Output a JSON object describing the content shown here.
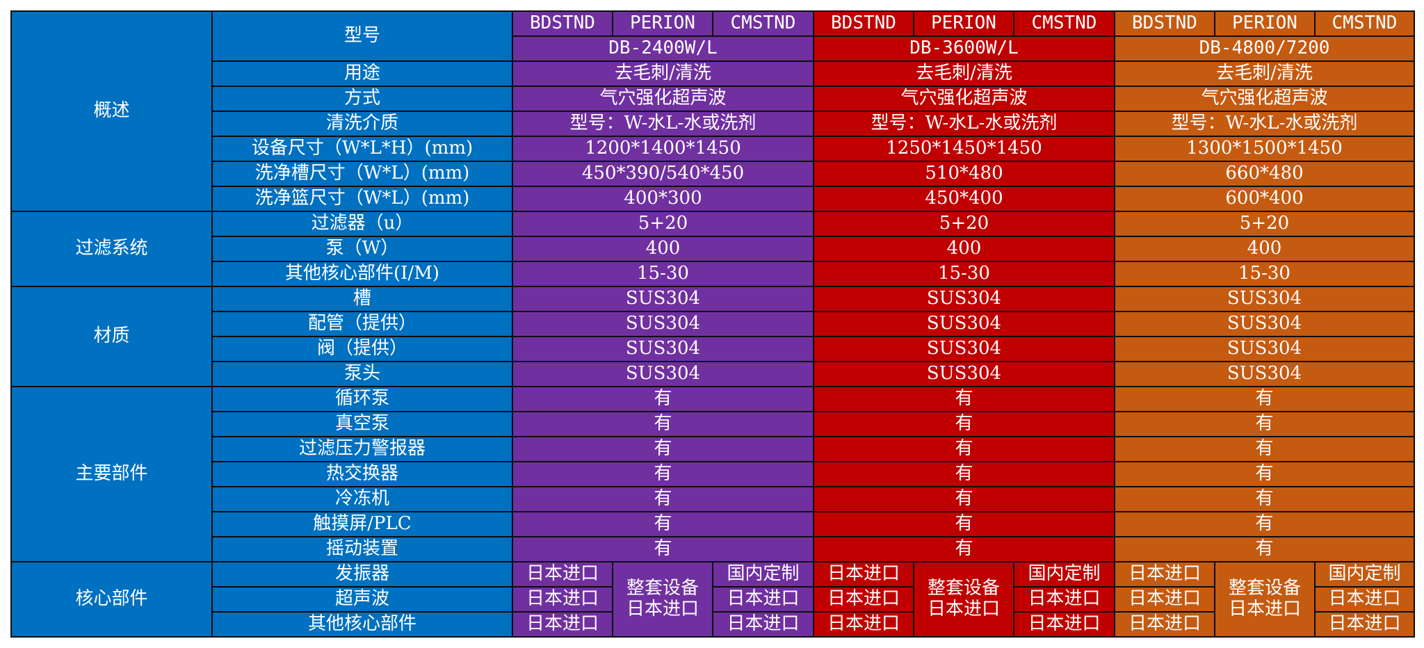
{
  "brands": [
    "BDSTND",
    "PERION",
    "CMSTND"
  ],
  "colors": {
    "label_bg": "#0070c0",
    "model1_bg": "#7030a0",
    "model2_bg": "#c00000",
    "model3_bg": "#c55a11",
    "border": "#0d0d0d",
    "text": "#ffffff"
  },
  "categories": {
    "overview": "概述",
    "filter": "过滤系统",
    "material": "材质",
    "main_parts": "主要部件",
    "core_parts": "核心部件"
  },
  "rows": {
    "model": {
      "label": "型号",
      "values": [
        "DB-2400W/L",
        "DB-3600W/L",
        "DB-4800/7200"
      ]
    },
    "usage": {
      "label": "用途",
      "values": [
        "去毛刺/清洗",
        "去毛刺/清洗",
        "去毛刺/清洗"
      ]
    },
    "method": {
      "label": "方式",
      "values": [
        "气穴强化超声波",
        "气穴强化超声波",
        "气穴强化超声波"
      ]
    },
    "medium": {
      "label": "清洗介质",
      "values": [
        "型号：W-水L-水或洗剂",
        "型号：W-水L-水或洗剂",
        "型号：W-水L-水或洗剂"
      ]
    },
    "equip_size": {
      "label": "设备尺寸（W*L*H）(mm)",
      "values": [
        "1200*1400*1450",
        "1250*1450*1450",
        "1300*1500*1450"
      ]
    },
    "tank_size": {
      "label": "洗净槽尺寸（W*L）(mm)",
      "values": [
        "450*390/540*450",
        "510*480",
        "660*480"
      ]
    },
    "basket_size": {
      "label": "洗净篮尺寸（W*L）(mm)",
      "values": [
        "400*300",
        "450*400",
        "600*400"
      ]
    },
    "filter_u": {
      "label": "过滤器（u）",
      "values": [
        "5+20",
        "5+20",
        "5+20"
      ]
    },
    "pump_w": {
      "label": "泵（W）",
      "values": [
        "400",
        "400",
        "400"
      ]
    },
    "other_core_im": {
      "label": "其他核心部件(I/M)",
      "values": [
        "15-30",
        "15-30",
        "15-30"
      ]
    },
    "tank": {
      "label": "槽",
      "values": [
        "SUS304",
        "SUS304",
        "SUS304"
      ]
    },
    "piping": {
      "label": "配管（提供）",
      "values": [
        "SUS304",
        "SUS304",
        "SUS304"
      ]
    },
    "valve": {
      "label": "阀（提供）",
      "values": [
        "SUS304",
        "SUS304",
        "SUS304"
      ]
    },
    "pump_head": {
      "label": "泵头",
      "values": [
        "SUS304",
        "SUS304",
        "SUS304"
      ]
    },
    "circ_pump": {
      "label": "循环泵",
      "values": [
        "有",
        "有",
        "有"
      ]
    },
    "vacuum_pump": {
      "label": "真空泵",
      "values": [
        "有",
        "有",
        "有"
      ]
    },
    "pressure_alarm": {
      "label": "过滤压力警报器",
      "values": [
        "有",
        "有",
        "有"
      ]
    },
    "heat_exchanger": {
      "label": "热交换器",
      "values": [
        "有",
        "有",
        "有"
      ]
    },
    "chiller": {
      "label": "冷冻机",
      "values": [
        "有",
        "有",
        "有"
      ]
    },
    "touchscreen": {
      "label": "触摸屏/PLC",
      "values": [
        "有",
        "有",
        "有"
      ]
    },
    "shaker": {
      "label": "摇动装置",
      "values": [
        "有",
        "有",
        "有"
      ]
    }
  },
  "core": {
    "rows": [
      {
        "label": "发振器",
        "bd": "日本进口",
        "cm": "国内定制"
      },
      {
        "label": "超声波",
        "bd": "日本进口",
        "cm": "日本进口"
      },
      {
        "label": "其他核心部件",
        "bd": "日本进口",
        "cm": "日本进口"
      }
    ],
    "perion_line1": "整套设备",
    "perion_line2": "日本进口"
  }
}
